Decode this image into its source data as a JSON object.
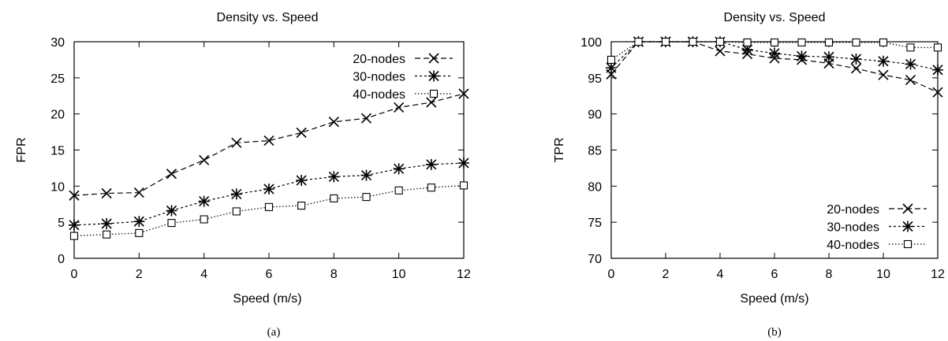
{
  "chart_data": [
    {
      "type": "line",
      "title": "Density vs. Speed",
      "xlabel": "Speed (m/s)",
      "ylabel": "FPR",
      "caption": "(a)",
      "xlim": [
        0,
        12
      ],
      "ylim": [
        0,
        30
      ],
      "xticks": [
        0,
        2,
        4,
        6,
        8,
        10,
        12
      ],
      "yticks": [
        0,
        5,
        10,
        15,
        20,
        25,
        30
      ],
      "grid": false,
      "legend": "top-right",
      "x": [
        0,
        1,
        2,
        3,
        4,
        5,
        6,
        7,
        8,
        9,
        10,
        11,
        12
      ],
      "series": [
        {
          "name": "20-nodes",
          "marker": "x",
          "dash": "dashed",
          "values": [
            8.7,
            9.0,
            9.1,
            11.7,
            13.6,
            16.0,
            16.3,
            17.4,
            18.9,
            19.4,
            20.9,
            21.6,
            22.8
          ]
        },
        {
          "name": "30-nodes",
          "marker": "star",
          "dash": "dashdot",
          "values": [
            4.6,
            4.8,
            5.1,
            6.6,
            7.9,
            8.9,
            9.6,
            10.8,
            11.3,
            11.5,
            12.4,
            13.0,
            13.2
          ]
        },
        {
          "name": "40-nodes",
          "marker": "square",
          "dash": "dotted",
          "values": [
            3.1,
            3.3,
            3.5,
            4.9,
            5.4,
            6.5,
            7.1,
            7.3,
            8.3,
            8.5,
            9.4,
            9.8,
            10.1
          ]
        }
      ]
    },
    {
      "type": "line",
      "title": "Density vs. Speed",
      "xlabel": "Speed (m/s)",
      "ylabel": "TPR",
      "caption": "(b)",
      "xlim": [
        0,
        12
      ],
      "ylim": [
        70,
        100
      ],
      "xticks": [
        0,
        2,
        4,
        6,
        8,
        10,
        12
      ],
      "yticks": [
        70,
        75,
        80,
        85,
        90,
        95,
        100
      ],
      "grid": false,
      "legend": "bottom-right",
      "x": [
        0,
        1,
        2,
        3,
        4,
        5,
        6,
        7,
        8,
        9,
        10,
        11,
        12
      ],
      "series": [
        {
          "name": "20-nodes",
          "marker": "x",
          "dash": "dashed",
          "values": [
            95.5,
            100,
            100,
            100,
            98.7,
            98.3,
            97.7,
            97.5,
            97.0,
            96.3,
            95.4,
            94.7,
            93.0
          ]
        },
        {
          "name": "30-nodes",
          "marker": "star",
          "dash": "dashdot",
          "values": [
            96.4,
            100,
            100,
            100,
            100,
            98.9,
            98.4,
            98.0,
            97.9,
            97.6,
            97.3,
            96.9,
            96.1
          ]
        },
        {
          "name": "40-nodes",
          "marker": "square",
          "dash": "dotted",
          "values": [
            97.5,
            100,
            100,
            100,
            100,
            99.9,
            99.9,
            99.9,
            99.9,
            99.9,
            99.9,
            99.2,
            99.2
          ]
        }
      ]
    }
  ]
}
